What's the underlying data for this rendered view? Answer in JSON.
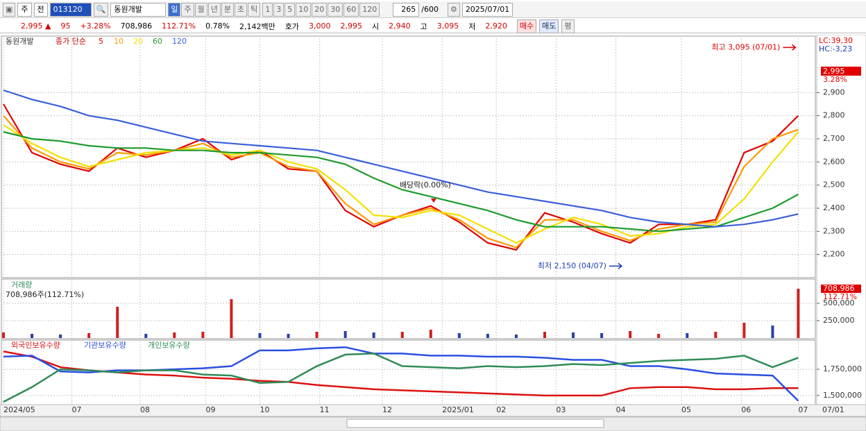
{
  "toolbar": {
    "code_type": "주",
    "prev": "전",
    "code": "013120",
    "name": "동원개발",
    "periods": [
      "일",
      "주",
      "월",
      "년",
      "분",
      "초",
      "틱"
    ],
    "intervals": [
      "1",
      "3",
      "5",
      "10",
      "20",
      "30",
      "60",
      "120"
    ],
    "count": "265",
    "max": "/600",
    "date": "2025/07/01"
  },
  "quote": {
    "price": "2,995",
    "arrow": "▲",
    "change": "95",
    "change_pct": "+3.28%",
    "volume": "708,986",
    "volume_pct": "112.71%",
    "turnover": "0.78%",
    "amount": "2,142백만",
    "ask_label": "호가",
    "ask": "3,000",
    "bid": "2,995",
    "open_label": "시",
    "open": "2,940",
    "high_label": "고",
    "high": "3,095",
    "low_label": "저",
    "low": "2,920",
    "buy": "매수",
    "sell": "매도",
    "avg": "평"
  },
  "chart_data": [
    {
      "type": "line",
      "name": "동원개발",
      "legend_label": "종가 단순",
      "lc": "LC:39,30",
      "hc": "HC:-3,23",
      "last_label": "2,995",
      "last_pct": "3.28%",
      "cursor_date": "07/01",
      "x": [
        0,
        10,
        20,
        30,
        40,
        50,
        60,
        70,
        80,
        90,
        100,
        110,
        120,
        130,
        140,
        150,
        160,
        170,
        180,
        190,
        200,
        210,
        220,
        230,
        240,
        250,
        260,
        270,
        279
      ],
      "xlim": [
        0,
        285
      ],
      "xticks": [
        {
          "value": 0,
          "label": "2024/05"
        },
        {
          "value": 24,
          "label": "07"
        },
        {
          "value": 48,
          "label": "08"
        },
        {
          "value": 71,
          "label": "09"
        },
        {
          "value": 90,
          "label": "10"
        },
        {
          "value": 111,
          "label": "11"
        },
        {
          "value": 133,
          "label": "12"
        },
        {
          "value": 154,
          "label": "2025/01"
        },
        {
          "value": 173,
          "label": "02"
        },
        {
          "value": 194,
          "label": "03"
        },
        {
          "value": 215,
          "label": "04"
        },
        {
          "value": 238,
          "label": "05"
        },
        {
          "value": 259,
          "label": "06"
        },
        {
          "value": 279,
          "label": "07"
        }
      ],
      "ylim": [
        2100,
        3135
      ],
      "yticks": [
        {
          "value": 2200,
          "label": "2,200"
        },
        {
          "value": 2300,
          "label": "2,300"
        },
        {
          "value": 2400,
          "label": "2,400"
        },
        {
          "value": 2500,
          "label": "2,500"
        },
        {
          "value": 2600,
          "label": "2,600"
        },
        {
          "value": 2700,
          "label": "2,700"
        },
        {
          "value": 2800,
          "label": "2,800"
        },
        {
          "value": 2900,
          "label": "2,900"
        }
      ],
      "grid": true,
      "series": [
        {
          "name": "5",
          "color": "#e00000",
          "values": [
            2850,
            2640,
            2590,
            2560,
            2660,
            2620,
            2650,
            2700,
            2610,
            2650,
            2570,
            2560,
            2390,
            2320,
            2370,
            2410,
            2340,
            2250,
            2220,
            2380,
            2340,
            2290,
            2250,
            2330,
            2330,
            2350,
            2640,
            2690,
            2800
          ]
        },
        {
          "name": "10",
          "color": "#ff9900",
          "values": [
            2800,
            2660,
            2600,
            2570,
            2640,
            2630,
            2650,
            2680,
            2620,
            2640,
            2580,
            2560,
            2420,
            2330,
            2370,
            2400,
            2350,
            2270,
            2230,
            2350,
            2350,
            2300,
            2260,
            2310,
            2330,
            2340,
            2580,
            2700,
            2740
          ]
        },
        {
          "name": "20",
          "color": "#f2e000",
          "values": [
            2760,
            2680,
            2620,
            2580,
            2610,
            2640,
            2650,
            2660,
            2630,
            2650,
            2600,
            2570,
            2480,
            2370,
            2360,
            2390,
            2370,
            2310,
            2250,
            2310,
            2360,
            2330,
            2280,
            2290,
            2320,
            2330,
            2440,
            2600,
            2730
          ]
        },
        {
          "name": "60",
          "color": "#1d9a2e",
          "values": [
            2730,
            2700,
            2690,
            2670,
            2660,
            2660,
            2650,
            2650,
            2640,
            2640,
            2630,
            2620,
            2590,
            2530,
            2480,
            2450,
            2420,
            2390,
            2350,
            2320,
            2320,
            2320,
            2310,
            2300,
            2310,
            2320,
            2360,
            2400,
            2460
          ]
        },
        {
          "name": "120",
          "color": "#3a5ed8",
          "values": [
            2910,
            2870,
            2840,
            2800,
            2780,
            2750,
            2720,
            2690,
            2680,
            2670,
            2660,
            2650,
            2620,
            2590,
            2560,
            2530,
            2500,
            2470,
            2450,
            2430,
            2410,
            2390,
            2360,
            2340,
            2330,
            2320,
            2330,
            2350,
            2375
          ]
        }
      ],
      "annotations": [
        {
          "text": "최고 3,095 (07/01)",
          "x": 279,
          "value": 3095
        },
        {
          "text": "최저 2,150 (04/07)",
          "x": 218,
          "value": 2150
        },
        {
          "text": "배당락(0.00%)",
          "x": 151,
          "value": 2430
        }
      ]
    },
    {
      "type": "bar",
      "name": "거래량",
      "caption": "708,986주(112.71%)",
      "value_tag": "708,986",
      "pct_tag": "112.71%",
      "x": [
        0,
        10,
        20,
        30,
        40,
        50,
        60,
        70,
        80,
        90,
        100,
        110,
        120,
        130,
        140,
        150,
        160,
        170,
        180,
        190,
        200,
        210,
        220,
        230,
        240,
        250,
        260,
        270,
        279
      ],
      "values": [
        80000,
        60000,
        50000,
        70000,
        450000,
        60000,
        80000,
        90000,
        560000,
        70000,
        60000,
        90000,
        100000,
        80000,
        90000,
        120000,
        70000,
        60000,
        50000,
        90000,
        80000,
        70000,
        100000,
        60000,
        70000,
        90000,
        220000,
        180000,
        708986
      ],
      "colors": [
        "#d02020",
        "#2b3fa8",
        "#2b3fa8",
        "#d02020",
        "#d02020",
        "#2b3fa8",
        "#d02020",
        "#d02020",
        "#d02020",
        "#2b3fa8",
        "#2b3fa8",
        "#d02020",
        "#2b3fa8",
        "#2b3fa8",
        "#d02020",
        "#d02020",
        "#2b3fa8",
        "#2b3fa8",
        "#2b3fa8",
        "#d02020",
        "#2b3fa8",
        "#2b3fa8",
        "#d02020",
        "#d02020",
        "#2b3fa8",
        "#d02020",
        "#d02020",
        "#2b3fa8",
        "#d02020"
      ],
      "ylim": [
        0,
        850000
      ],
      "yticks": [
        {
          "value": 250000,
          "label": "250,000"
        },
        {
          "value": 500000,
          "label": "500,000"
        }
      ]
    },
    {
      "type": "line",
      "x": [
        0,
        10,
        20,
        30,
        40,
        50,
        60,
        70,
        80,
        90,
        100,
        110,
        120,
        130,
        140,
        150,
        160,
        170,
        180,
        190,
        200,
        210,
        220,
        230,
        240,
        250,
        260,
        270,
        279
      ],
      "ylim": [
        1420000,
        2015000
      ],
      "yticks": [
        {
          "value": 1500000,
          "label": "1,500,000"
        },
        {
          "value": 1750000,
          "label": "1,750,000"
        }
      ],
      "series": [
        {
          "name": "외국인보유수량",
          "color": "#dd1111",
          "values": [
            1920000,
            1870000,
            1770000,
            1740000,
            1720000,
            1700000,
            1690000,
            1670000,
            1660000,
            1640000,
            1630000,
            1600000,
            1580000,
            1560000,
            1550000,
            1540000,
            1530000,
            1520000,
            1510000,
            1500000,
            1500000,
            1500000,
            1570000,
            1580000,
            1580000,
            1560000,
            1560000,
            1570000,
            1570000
          ]
        },
        {
          "name": "기관보유수량",
          "color": "#2a4fe0",
          "values": [
            1870000,
            1880000,
            1730000,
            1720000,
            1740000,
            1740000,
            1750000,
            1760000,
            1780000,
            1930000,
            1930000,
            1950000,
            1960000,
            1900000,
            1900000,
            1880000,
            1880000,
            1870000,
            1870000,
            1860000,
            1840000,
            1840000,
            1780000,
            1780000,
            1750000,
            1710000,
            1700000,
            1690000,
            1450000
          ]
        },
        {
          "name": "개인보유수량",
          "color": "#2e8b57",
          "values": [
            1440000,
            1580000,
            1750000,
            1740000,
            1720000,
            1740000,
            1740000,
            1700000,
            1690000,
            1620000,
            1630000,
            1780000,
            1890000,
            1900000,
            1780000,
            1770000,
            1760000,
            1780000,
            1770000,
            1780000,
            1800000,
            1790000,
            1810000,
            1830000,
            1840000,
            1850000,
            1880000,
            1770000,
            1860000
          ]
        }
      ]
    }
  ]
}
